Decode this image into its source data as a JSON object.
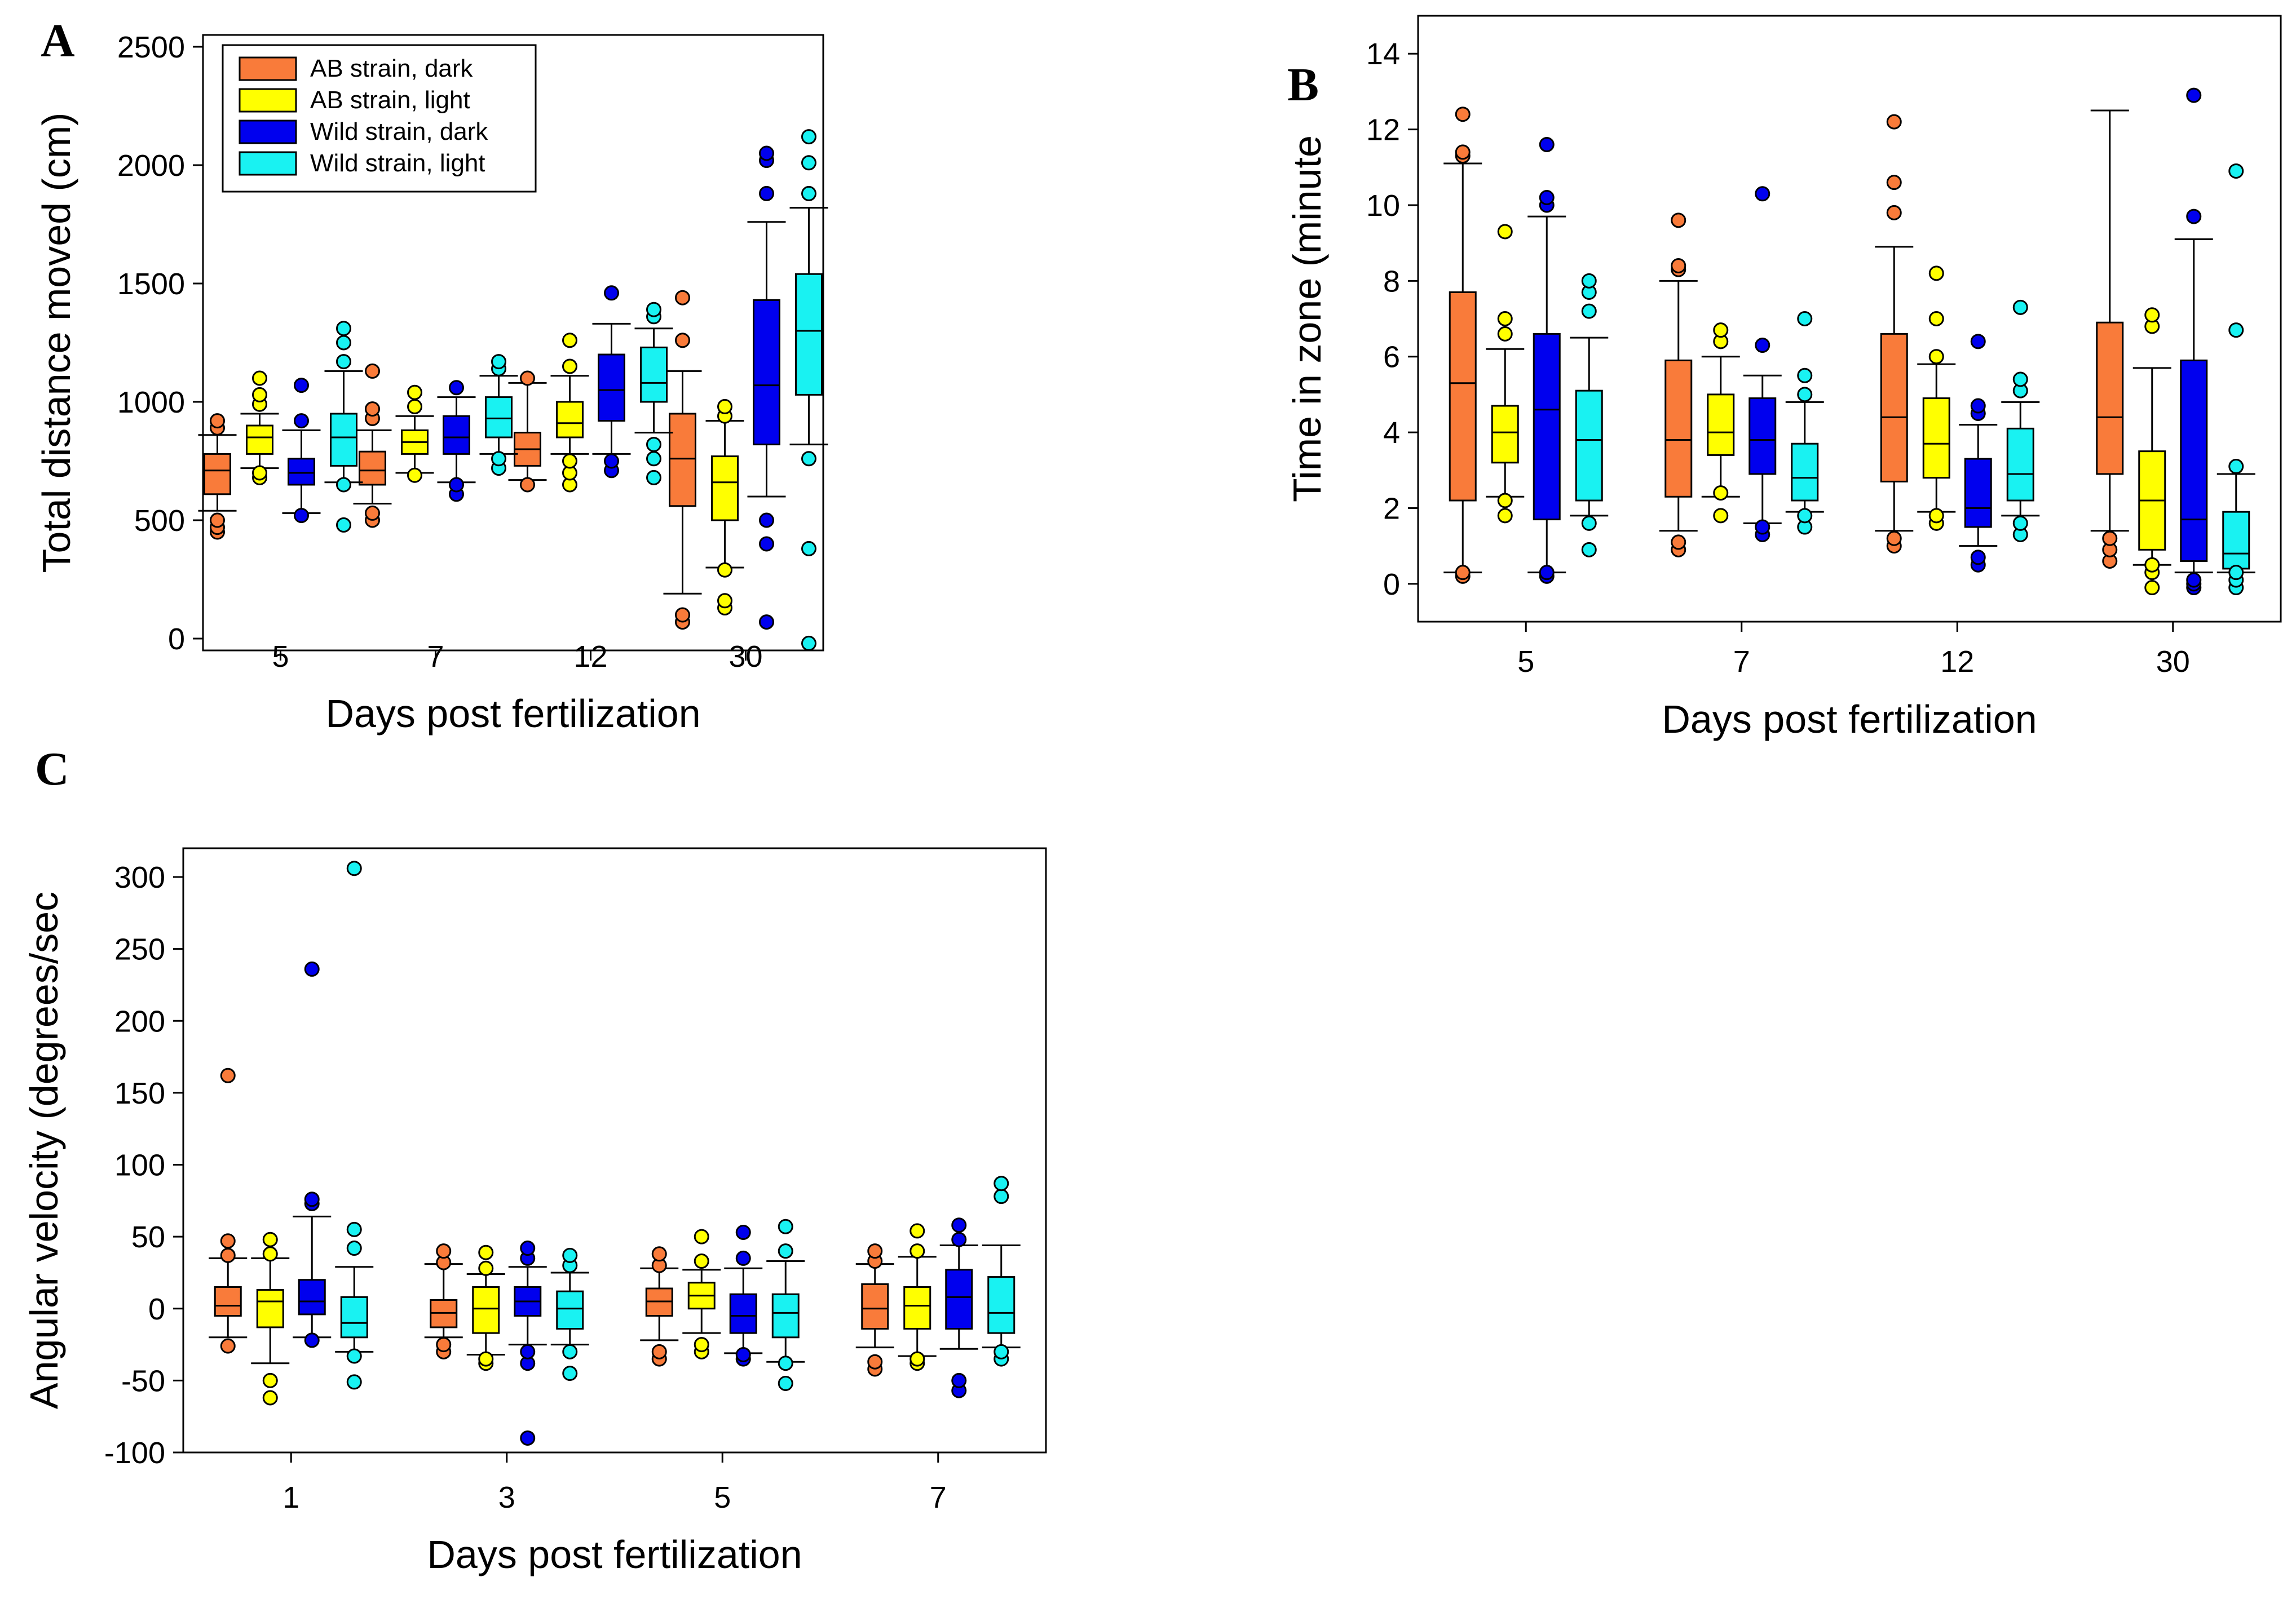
{
  "legend": [
    {
      "label": "AB strain, dark",
      "color": "#f97b3a"
    },
    {
      "label": "AB strain, light",
      "color": "#ffff00"
    },
    {
      "label": "Wild strain, dark",
      "color": "#0000ee"
    },
    {
      "label": "Wild strain, light",
      "color": "#19f2f2"
    }
  ],
  "chart_data": [
    {
      "panel": "A",
      "type": "box",
      "xlabel": "Days post fertilization",
      "ylabel": "Total distance moved (cm)",
      "categories": [
        "5",
        "7",
        "12",
        "30"
      ],
      "ylim": [
        -50,
        2550
      ],
      "yticks": [
        0,
        500,
        1000,
        1500,
        2000,
        2500
      ],
      "series": [
        {
          "name": "AB strain, dark",
          "boxes": [
            {
              "whisker_low": 540,
              "q1": 610,
              "median": 710,
              "q3": 780,
              "whisker_high": 860,
              "outliers": [
                450,
                470,
                500,
                890,
                920
              ]
            },
            {
              "whisker_low": 570,
              "q1": 650,
              "median": 710,
              "q3": 790,
              "whisker_high": 880,
              "outliers": [
                500,
                530,
                930,
                970,
                1130
              ]
            },
            {
              "whisker_low": 670,
              "q1": 730,
              "median": 800,
              "q3": 870,
              "whisker_high": 1080,
              "outliers": [
                650,
                1100
              ]
            },
            {
              "whisker_low": 190,
              "q1": 560,
              "median": 760,
              "q3": 950,
              "whisker_high": 1130,
              "outliers": [
                70,
                100,
                1260,
                1440
              ]
            }
          ]
        },
        {
          "name": "AB strain, light",
          "boxes": [
            {
              "whisker_low": 720,
              "q1": 780,
              "median": 850,
              "q3": 900,
              "whisker_high": 950,
              "outliers": [
                680,
                700,
                990,
                1030,
                1100
              ]
            },
            {
              "whisker_low": 700,
              "q1": 780,
              "median": 830,
              "q3": 880,
              "whisker_high": 940,
              "outliers": [
                690,
                980,
                1040
              ]
            },
            {
              "whisker_low": 780,
              "q1": 850,
              "median": 910,
              "q3": 1000,
              "whisker_high": 1110,
              "outliers": [
                650,
                700,
                750,
                1150,
                1260
              ]
            },
            {
              "whisker_low": 300,
              "q1": 500,
              "median": 660,
              "q3": 770,
              "whisker_high": 920,
              "outliers": [
                130,
                160,
                290,
                940,
                980
              ]
            }
          ]
        },
        {
          "name": "Wild strain, dark",
          "boxes": [
            {
              "whisker_low": 530,
              "q1": 650,
              "median": 700,
              "q3": 760,
              "whisker_high": 880,
              "outliers": [
                520,
                920,
                1070
              ]
            },
            {
              "whisker_low": 660,
              "q1": 780,
              "median": 850,
              "q3": 940,
              "whisker_high": 1020,
              "outliers": [
                610,
                650,
                1060
              ]
            },
            {
              "whisker_low": 780,
              "q1": 920,
              "median": 1050,
              "q3": 1200,
              "whisker_high": 1330,
              "outliers": [
                710,
                750,
                1460
              ]
            },
            {
              "whisker_low": 600,
              "q1": 820,
              "median": 1070,
              "q3": 1430,
              "whisker_high": 1760,
              "outliers": [
                70,
                400,
                500,
                1880,
                2020,
                2050
              ]
            }
          ]
        },
        {
          "name": "Wild strain, light",
          "boxes": [
            {
              "whisker_low": 660,
              "q1": 730,
              "median": 850,
              "q3": 950,
              "whisker_high": 1130,
              "outliers": [
                480,
                650,
                1170,
                1250,
                1310
              ]
            },
            {
              "whisker_low": 780,
              "q1": 850,
              "median": 930,
              "q3": 1020,
              "whisker_high": 1110,
              "outliers": [
                720,
                760,
                1140,
                1170
              ]
            },
            {
              "whisker_low": 870,
              "q1": 1000,
              "median": 1080,
              "q3": 1230,
              "whisker_high": 1310,
              "outliers": [
                680,
                760,
                820,
                1360,
                1390
              ]
            },
            {
              "whisker_low": 820,
              "q1": 1030,
              "median": 1300,
              "q3": 1540,
              "whisker_high": 1820,
              "outliers": [
                -20,
                380,
                760,
                1880,
                2010,
                2120
              ]
            }
          ]
        }
      ]
    },
    {
      "panel": "B",
      "type": "box",
      "xlabel": "Days post fertilization",
      "ylabel": "Time in zone (minute",
      "categories": [
        "5",
        "7",
        "12",
        "30"
      ],
      "ylim": [
        -1,
        15
      ],
      "yticks": [
        0,
        2,
        4,
        6,
        8,
        10,
        12,
        14
      ],
      "series": [
        {
          "name": "AB strain, dark",
          "boxes": [
            {
              "whisker_low": 0.3,
              "q1": 2.2,
              "median": 5.3,
              "q3": 7.7,
              "whisker_high": 11.1,
              "outliers": [
                0.2,
                0.3,
                11.3,
                11.4,
                12.4
              ]
            },
            {
              "whisker_low": 1.4,
              "q1": 2.3,
              "median": 3.8,
              "q3": 5.9,
              "whisker_high": 8.0,
              "outliers": [
                0.9,
                1.1,
                8.3,
                8.4,
                9.6
              ]
            },
            {
              "whisker_low": 1.4,
              "q1": 2.7,
              "median": 4.4,
              "q3": 6.6,
              "whisker_high": 8.9,
              "outliers": [
                1.0,
                1.2,
                9.8,
                10.6,
                12.2
              ]
            },
            {
              "whisker_low": 1.4,
              "q1": 2.9,
              "median": 4.4,
              "q3": 6.9,
              "whisker_high": 12.5,
              "outliers": [
                0.6,
                0.9,
                1.2
              ]
            }
          ]
        },
        {
          "name": "AB strain, light",
          "boxes": [
            {
              "whisker_low": 2.3,
              "q1": 3.2,
              "median": 4.0,
              "q3": 4.7,
              "whisker_high": 6.2,
              "outliers": [
                1.8,
                2.2,
                6.6,
                7.0,
                9.3
              ]
            },
            {
              "whisker_low": 2.3,
              "q1": 3.4,
              "median": 4.0,
              "q3": 5.0,
              "whisker_high": 6.0,
              "outliers": [
                1.8,
                2.4,
                6.4,
                6.7
              ]
            },
            {
              "whisker_low": 1.9,
              "q1": 2.8,
              "median": 3.7,
              "q3": 4.9,
              "whisker_high": 5.8,
              "outliers": [
                1.6,
                1.8,
                6.0,
                7.0,
                8.2
              ]
            },
            {
              "whisker_low": 0.5,
              "q1": 0.9,
              "median": 2.2,
              "q3": 3.5,
              "whisker_high": 5.7,
              "outliers": [
                -0.1,
                0.3,
                0.5,
                6.8,
                7.1
              ]
            }
          ]
        },
        {
          "name": "Wild strain, dark",
          "boxes": [
            {
              "whisker_low": 0.3,
              "q1": 1.7,
              "median": 4.6,
              "q3": 6.6,
              "whisker_high": 9.7,
              "outliers": [
                0.2,
                0.3,
                10.0,
                10.2,
                11.6
              ]
            },
            {
              "whisker_low": 1.6,
              "q1": 2.9,
              "median": 3.8,
              "q3": 4.9,
              "whisker_high": 5.5,
              "outliers": [
                1.3,
                1.5,
                6.3,
                10.3
              ]
            },
            {
              "whisker_low": 1.0,
              "q1": 1.5,
              "median": 2.0,
              "q3": 3.3,
              "whisker_high": 4.2,
              "outliers": [
                0.5,
                0.7,
                4.5,
                4.7,
                6.4
              ]
            },
            {
              "whisker_low": 0.3,
              "q1": 0.6,
              "median": 1.7,
              "q3": 5.9,
              "whisker_high": 9.1,
              "outliers": [
                -0.1,
                0.0,
                0.1,
                9.7,
                12.9
              ]
            }
          ]
        },
        {
          "name": "Wild strain, light",
          "boxes": [
            {
              "whisker_low": 1.8,
              "q1": 2.2,
              "median": 3.8,
              "q3": 5.1,
              "whisker_high": 6.5,
              "outliers": [
                0.9,
                1.6,
                7.2,
                7.7,
                8.0
              ]
            },
            {
              "whisker_low": 1.9,
              "q1": 2.2,
              "median": 2.8,
              "q3": 3.7,
              "whisker_high": 4.8,
              "outliers": [
                1.5,
                1.8,
                5.0,
                5.5,
                7.0
              ]
            },
            {
              "whisker_low": 1.8,
              "q1": 2.2,
              "median": 2.9,
              "q3": 4.1,
              "whisker_high": 4.8,
              "outliers": [
                1.3,
                1.6,
                5.1,
                5.4,
                7.3
              ]
            },
            {
              "whisker_low": 0.3,
              "q1": 0.4,
              "median": 0.8,
              "q3": 1.9,
              "whisker_high": 2.9,
              "outliers": [
                -0.1,
                0.1,
                0.3,
                3.1,
                6.7,
                10.9
              ]
            }
          ]
        }
      ]
    },
    {
      "panel": "C",
      "type": "box",
      "xlabel": "Days post fertilization",
      "ylabel": "Angular velocity (degrees/sec",
      "categories": [
        "1",
        "3",
        "5",
        "7"
      ],
      "ylim": [
        -100,
        320
      ],
      "yticks": [
        -100,
        -50,
        0,
        50,
        100,
        150,
        200,
        250,
        300
      ],
      "series": [
        {
          "name": "AB strain, dark",
          "boxes": [
            {
              "whisker_low": -20,
              "q1": -5,
              "median": 2,
              "q3": 15,
              "whisker_high": 35,
              "outliers": [
                -26,
                37,
                47,
                162
              ]
            },
            {
              "whisker_low": -20,
              "q1": -13,
              "median": -3,
              "q3": 6,
              "whisker_high": 31,
              "outliers": [
                -30,
                -25,
                32,
                40
              ]
            },
            {
              "whisker_low": -22,
              "q1": -5,
              "median": 5,
              "q3": 14,
              "whisker_high": 28,
              "outliers": [
                -35,
                -30,
                30,
                38
              ]
            },
            {
              "whisker_low": -27,
              "q1": -14,
              "median": 0,
              "q3": 17,
              "whisker_high": 31,
              "outliers": [
                -42,
                -37,
                33,
                40
              ]
            }
          ]
        },
        {
          "name": "AB strain, light",
          "boxes": [
            {
              "whisker_low": -38,
              "q1": -13,
              "median": 5,
              "q3": 13,
              "whisker_high": 35,
              "outliers": [
                -62,
                -50,
                38,
                48
              ]
            },
            {
              "whisker_low": -32,
              "q1": -17,
              "median": 0,
              "q3": 15,
              "whisker_high": 24,
              "outliers": [
                -38,
                -35,
                28,
                39
              ]
            },
            {
              "whisker_low": -17,
              "q1": 0,
              "median": 9,
              "q3": 18,
              "whisker_high": 27,
              "outliers": [
                -30,
                -25,
                33,
                50
              ]
            },
            {
              "whisker_low": -33,
              "q1": -14,
              "median": 2,
              "q3": 15,
              "whisker_high": 36,
              "outliers": [
                -38,
                -35,
                40,
                54
              ]
            }
          ]
        },
        {
          "name": "Wild strain, dark",
          "boxes": [
            {
              "whisker_low": -20,
              "q1": -4,
              "median": 5,
              "q3": 20,
              "whisker_high": 64,
              "outliers": [
                -22,
                73,
                76,
                236
              ]
            },
            {
              "whisker_low": -25,
              "q1": -5,
              "median": 5,
              "q3": 15,
              "whisker_high": 29,
              "outliers": [
                -90,
                -38,
                -30,
                35,
                42
              ]
            },
            {
              "whisker_low": -31,
              "q1": -17,
              "median": -5,
              "q3": 10,
              "whisker_high": 28,
              "outliers": [
                -35,
                -32,
                35,
                53
              ]
            },
            {
              "whisker_low": -28,
              "q1": -14,
              "median": 8,
              "q3": 27,
              "whisker_high": 44,
              "outliers": [
                -57,
                -50,
                48,
                58
              ]
            }
          ]
        },
        {
          "name": "Wild strain, light",
          "boxes": [
            {
              "whisker_low": -30,
              "q1": -20,
              "median": -10,
              "q3": 8,
              "whisker_high": 29,
              "outliers": [
                -51,
                -33,
                42,
                55,
                306
              ]
            },
            {
              "whisker_low": -25,
              "q1": -14,
              "median": 0,
              "q3": 12,
              "whisker_high": 25,
              "outliers": [
                -45,
                -30,
                30,
                37
              ]
            },
            {
              "whisker_low": -37,
              "q1": -20,
              "median": -3,
              "q3": 10,
              "whisker_high": 33,
              "outliers": [
                -52,
                -38,
                40,
                57
              ]
            },
            {
              "whisker_low": -27,
              "q1": -17,
              "median": -3,
              "q3": 22,
              "whisker_high": 44,
              "outliers": [
                -35,
                -30,
                78,
                87
              ]
            }
          ]
        }
      ]
    }
  ]
}
